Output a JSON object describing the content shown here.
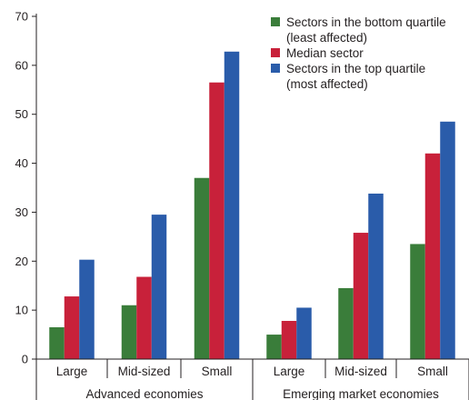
{
  "chart_data": {
    "type": "bar",
    "y_ticks": [
      0,
      10,
      20,
      30,
      40,
      50,
      60,
      70
    ],
    "ylim": [
      0,
      70
    ],
    "groups": [
      {
        "label": "Advanced economies",
        "categories": [
          "Large",
          "Mid-sized",
          "Small"
        ]
      },
      {
        "label": "Emerging market economies",
        "categories": [
          "Large",
          "Mid-sized",
          "Small"
        ]
      }
    ],
    "series": [
      {
        "name": "Sectors in the bottom quartile (least affected)",
        "legend_lines": [
          "Sectors in the bottom quartile",
          "(least affected)"
        ],
        "color": "#3a7d3a",
        "values": [
          6.5,
          11,
          37,
          5,
          14.5,
          23.5
        ]
      },
      {
        "name": "Median sector",
        "legend_lines": [
          "Median sector"
        ],
        "color": "#c8213a",
        "values": [
          12.8,
          16.8,
          56.5,
          7.8,
          25.8,
          42
        ]
      },
      {
        "name": "Sectors in the top quartile (most affected)",
        "legend_lines": [
          "Sectors in the top quartile",
          "(most affected)"
        ],
        "color": "#2a5caa",
        "values": [
          20.3,
          29.5,
          62.8,
          10.5,
          33.8,
          48.5
        ]
      }
    ],
    "grid": false,
    "legend_position": "top-right"
  }
}
